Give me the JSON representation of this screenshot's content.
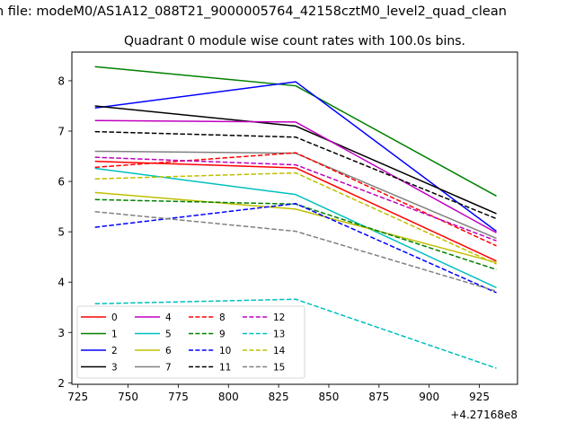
{
  "chart_data": {
    "type": "line",
    "suptitle": "n file: modeM0/AS1A12_088T21_9000005764_42158cztM0_level2_quad_clean",
    "title": "Quadrant 0 module wise count rates with 100.0s bins.",
    "x": [
      427168733.5,
      427168833.5,
      427168933.5
    ],
    "x_offset_label": "+4.27168e8",
    "xticks": [
      725,
      750,
      775,
      800,
      825,
      850,
      875,
      900,
      925
    ],
    "yticks": [
      2,
      3,
      4,
      5,
      6,
      7,
      8
    ],
    "xlim": [
      427168722,
      427168944
    ],
    "ylim": [
      1.97,
      8.57
    ],
    "grid": false,
    "legend_position": "lower-left",
    "legend_columns": 4,
    "series": [
      {
        "name": "0",
        "color": "#ff0000",
        "dash": "solid",
        "values": [
          6.4,
          6.27,
          4.42
        ]
      },
      {
        "name": "1",
        "color": "#008000",
        "dash": "solid",
        "values": [
          8.28,
          7.9,
          5.71
        ]
      },
      {
        "name": "2",
        "color": "#0000ff",
        "dash": "solid",
        "values": [
          7.46,
          7.98,
          5.01
        ]
      },
      {
        "name": "3",
        "color": "#000000",
        "dash": "solid",
        "values": [
          7.5,
          7.1,
          5.36
        ]
      },
      {
        "name": "4",
        "color": "#bf00bf",
        "dash": "solid",
        "values": [
          7.21,
          7.18,
          4.98
        ]
      },
      {
        "name": "5",
        "color": "#00bfbf",
        "dash": "solid",
        "values": [
          6.26,
          5.74,
          3.89
        ]
      },
      {
        "name": "6",
        "color": "#bfbf00",
        "dash": "solid",
        "values": [
          5.78,
          5.45,
          4.39
        ]
      },
      {
        "name": "7",
        "color": "#808080",
        "dash": "solid",
        "values": [
          6.6,
          6.56,
          4.87
        ]
      },
      {
        "name": "8",
        "color": "#ff0000",
        "dash": "dashed",
        "values": [
          6.28,
          6.57,
          4.72
        ]
      },
      {
        "name": "9",
        "color": "#008000",
        "dash": "dashed",
        "values": [
          5.64,
          5.55,
          4.25
        ]
      },
      {
        "name": "10",
        "color": "#0000ff",
        "dash": "dashed",
        "values": [
          5.09,
          5.56,
          3.79
        ]
      },
      {
        "name": "11",
        "color": "#000000",
        "dash": "dashed",
        "values": [
          6.99,
          6.88,
          5.26
        ]
      },
      {
        "name": "12",
        "color": "#bf00bf",
        "dash": "dashed",
        "values": [
          6.48,
          6.33,
          4.82
        ]
      },
      {
        "name": "13",
        "color": "#00bfbf",
        "dash": "dashed",
        "values": [
          3.57,
          3.66,
          2.29
        ]
      },
      {
        "name": "14",
        "color": "#bfbf00",
        "dash": "dashed",
        "values": [
          6.05,
          6.17,
          4.36
        ]
      },
      {
        "name": "15",
        "color": "#808080",
        "dash": "dashed",
        "values": [
          5.4,
          5.01,
          3.82
        ]
      }
    ]
  }
}
